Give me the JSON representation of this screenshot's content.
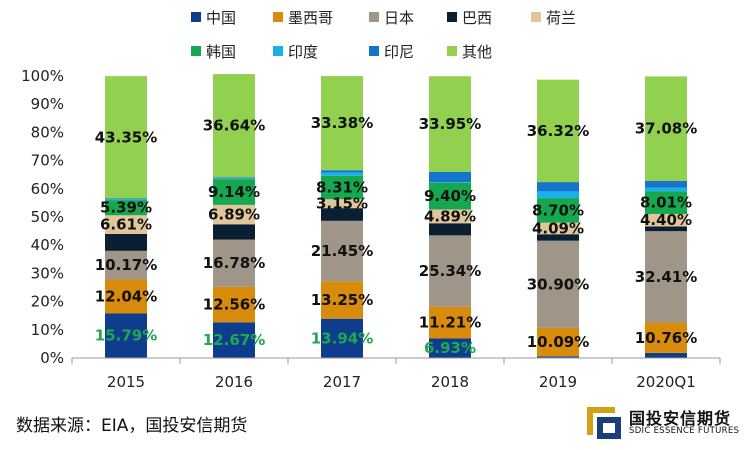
{
  "chart_data": {
    "type": "bar",
    "stacked": true,
    "categories": [
      "2015",
      "2016",
      "2017",
      "2018",
      "2019",
      "2020Q1"
    ],
    "ylim": [
      0,
      100
    ],
    "yticks": [
      "0%",
      "10%",
      "20%",
      "30%",
      "40%",
      "50%",
      "60%",
      "70%",
      "80%",
      "90%",
      "100%"
    ],
    "legend_position": "top",
    "series": [
      {
        "name": "中国",
        "color": "#0d3d8c",
        "values": [
          15.79,
          12.67,
          13.94,
          6.93,
          0.6,
          1.8
        ],
        "labels": [
          "15.79%",
          "12.67%",
          "13.94%",
          "6.93%",
          "",
          ""
        ],
        "label_color": "#1fa84f"
      },
      {
        "name": "墨西哥",
        "color": "#d98b0b",
        "values": [
          12.04,
          12.56,
          13.25,
          11.21,
          10.09,
          10.76
        ],
        "labels": [
          "12.04%",
          "12.56%",
          "13.25%",
          "11.21%",
          "10.09%",
          "10.76%"
        ]
      },
      {
        "name": "日本",
        "color": "#a09589",
        "values": [
          10.17,
          16.78,
          21.45,
          25.34,
          30.9,
          32.41
        ],
        "labels": [
          "10.17%",
          "16.78%",
          "21.45%",
          "25.34%",
          "30.90%",
          "32.41%"
        ]
      },
      {
        "name": "巴西",
        "color": "#0b1f33",
        "values": [
          6.0,
          5.4,
          4.5,
          4.3,
          2.3,
          1.7
        ],
        "labels": [
          "",
          "",
          "",
          "",
          "",
          ""
        ]
      },
      {
        "name": "荷兰",
        "color": "#e0c69a",
        "values": [
          6.61,
          6.89,
          3.15,
          4.89,
          4.09,
          4.4
        ],
        "labels": [
          "6.61%",
          "6.89%",
          "3.15%",
          "4.89%",
          "4.09%",
          "4.40%"
        ]
      },
      {
        "name": "韩国",
        "color": "#15a84f",
        "values": [
          5.39,
          9.14,
          8.31,
          9.4,
          8.7,
          8.01
        ],
        "labels": [
          "5.39%",
          "9.14%",
          "8.31%",
          "9.40%",
          "8.70%",
          "8.01%"
        ]
      },
      {
        "name": "印度",
        "color": "#1ab0e8",
        "values": [
          0.3,
          0.3,
          1.2,
          0.3,
          2.4,
          1.3
        ],
        "labels": [
          "",
          "",
          "",
          "",
          "",
          ""
        ]
      },
      {
        "name": "印尼",
        "color": "#1575c9",
        "values": [
          0.3,
          0.3,
          0.8,
          3.6,
          3.3,
          2.4
        ],
        "labels": [
          "",
          "",
          "",
          "",
          "",
          ""
        ]
      },
      {
        "name": "其他",
        "color": "#92d050",
        "values": [
          43.35,
          36.64,
          33.38,
          33.95,
          36.32,
          37.08
        ],
        "labels": [
          "43.35%",
          "36.64%",
          "33.38%",
          "33.95%",
          "36.32%",
          "37.08%"
        ]
      }
    ]
  },
  "source_note": "数据来源：EIA，国投安信期货",
  "brand": {
    "name_cn": "国投安信期货",
    "name_en": "SDIC ESSENCE FUTURES",
    "colors": {
      "gold": "#d4a017",
      "navy": "#1b3d7a"
    }
  }
}
